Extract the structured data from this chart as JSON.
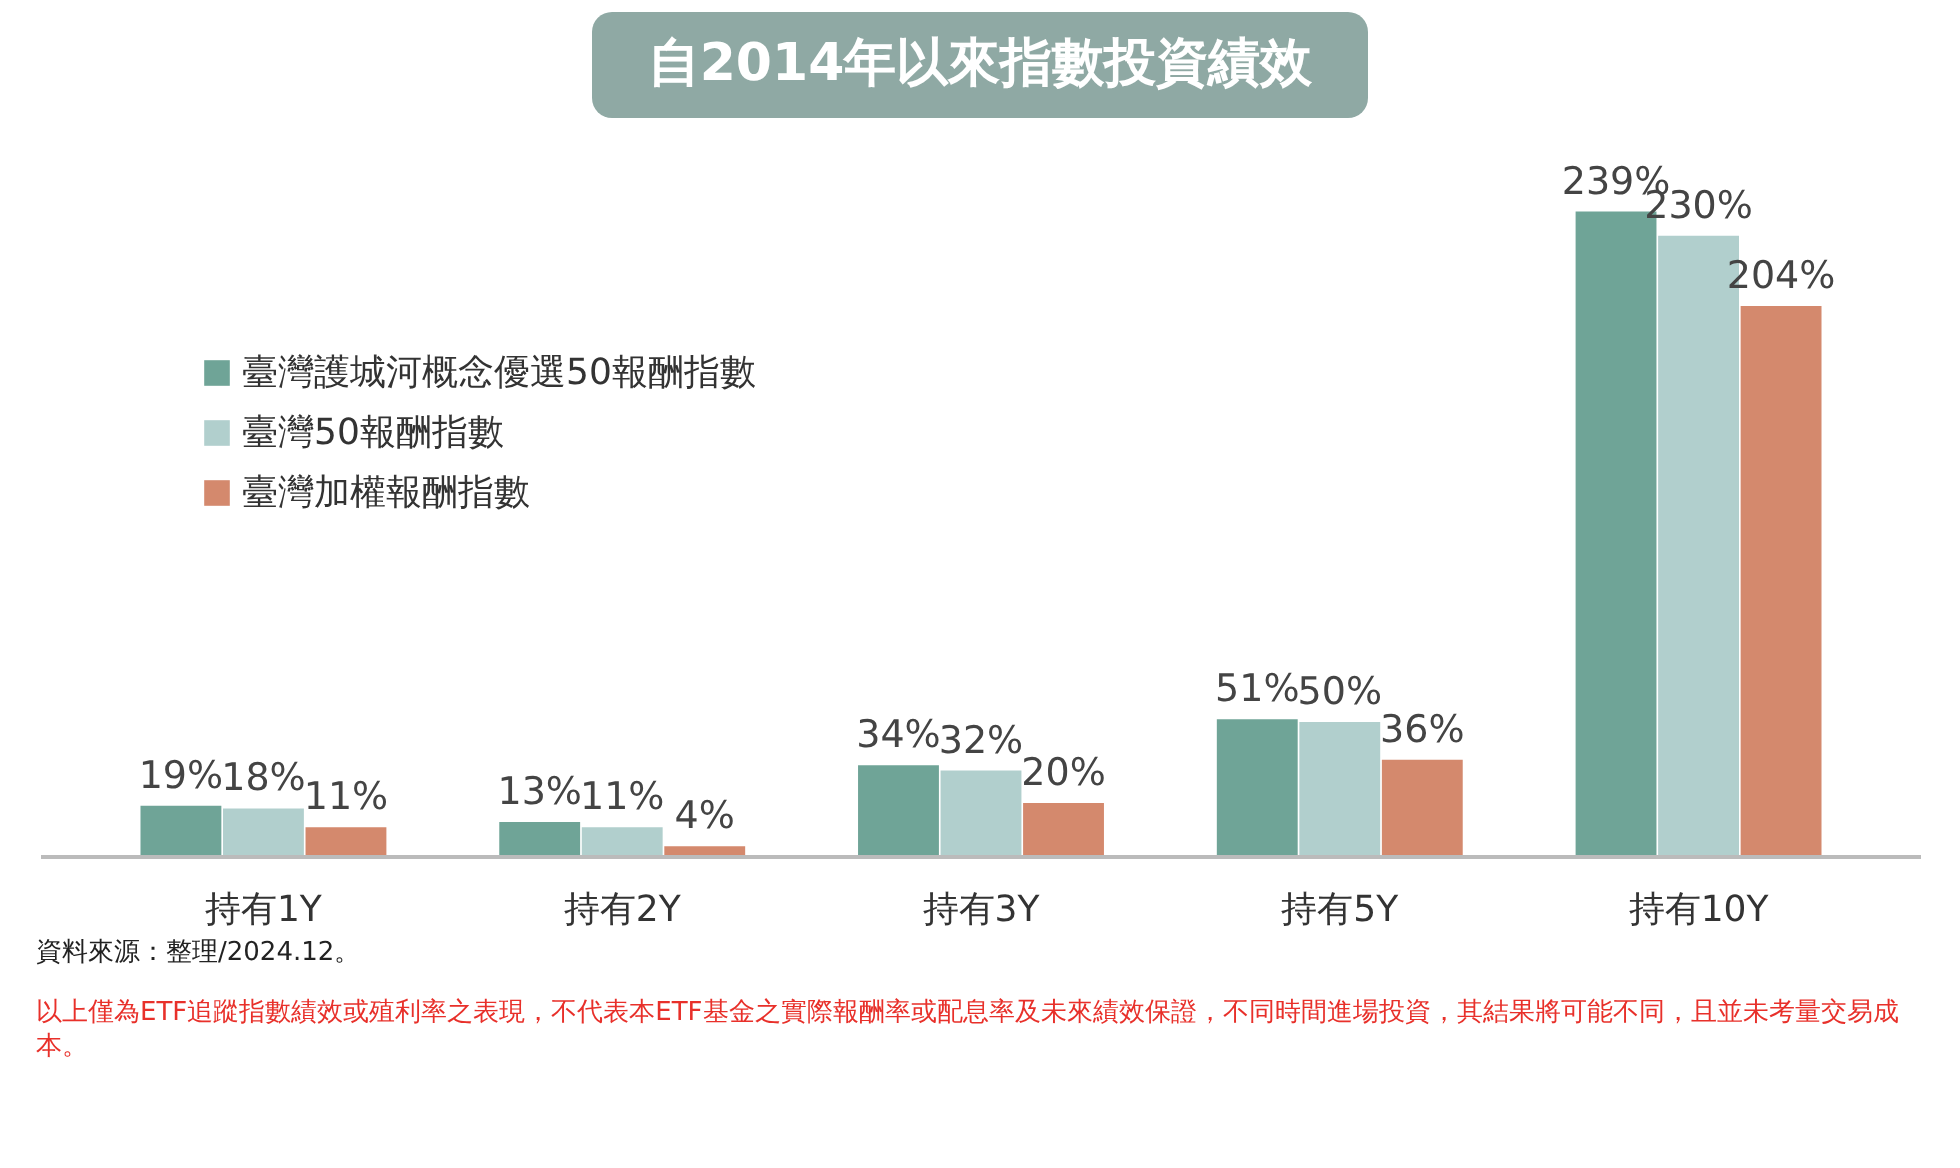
{
  "chart_data": {
    "type": "bar",
    "title": "自2014年以來指數投資績效",
    "categories": [
      "持有1Y",
      "持有2Y",
      "持有3Y",
      "持有5Y",
      "持有10Y"
    ],
    "series": [
      {
        "name": "臺灣護城河概念優選50報酬指數",
        "color": "#6fa497",
        "values": [
          19,
          13,
          34,
          51,
          239
        ],
        "value_labels": [
          "19%",
          "13%",
          "34%",
          "51%",
          "239%"
        ]
      },
      {
        "name": "臺灣50報酬指數",
        "color": "#b1cfcd",
        "values": [
          18,
          11,
          32,
          50,
          230
        ],
        "value_labels": [
          "18%",
          "11%",
          "32%",
          "50%",
          "230%"
        ]
      },
      {
        "name": "臺灣加權報酬指數",
        "color": "#d4896d",
        "values": [
          11,
          4,
          20,
          36,
          204
        ],
        "value_labels": [
          "11%",
          "4%",
          "20%",
          "36%",
          "204%"
        ]
      }
    ],
    "legend": "top left",
    "grid": false,
    "annotations": [
      "資料來源：整理/2024.12。",
      "以上僅為ETF追蹤指數績效或殖利率之表現，不代表本ETF基金之實際報酬率或配息率及未來績效保證，不同時間進場投資，其結果將可能不同，且並未考量交易成本。"
    ]
  }
}
